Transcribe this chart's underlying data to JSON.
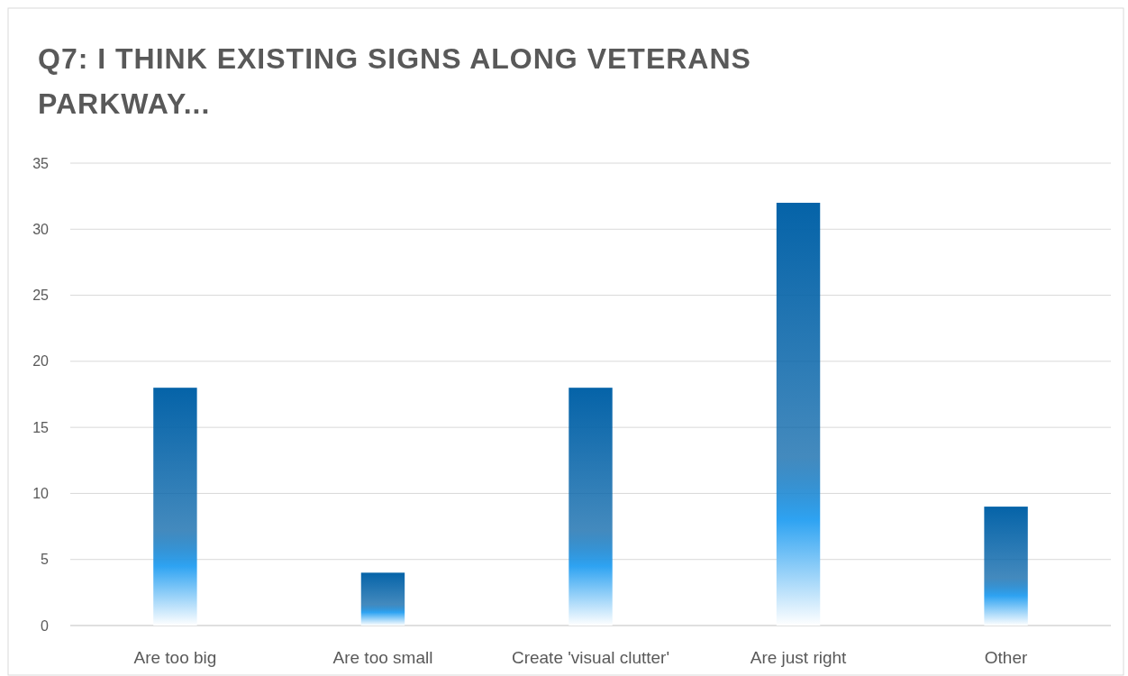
{
  "chart_data": {
    "type": "bar",
    "title": "Q7: I THINK EXISTING SIGNS ALONG VETERANS PARKWAY...",
    "categories": [
      "Are too big",
      "Are too small",
      "Create 'visual clutter'",
      "Are just right",
      "Other"
    ],
    "values": [
      18,
      4,
      18,
      32,
      9
    ],
    "color": "#0563a8",
    "ylim": [
      0,
      35
    ],
    "yticks": [
      0,
      5,
      10,
      15,
      20,
      25,
      30,
      35
    ],
    "grid": "y"
  }
}
